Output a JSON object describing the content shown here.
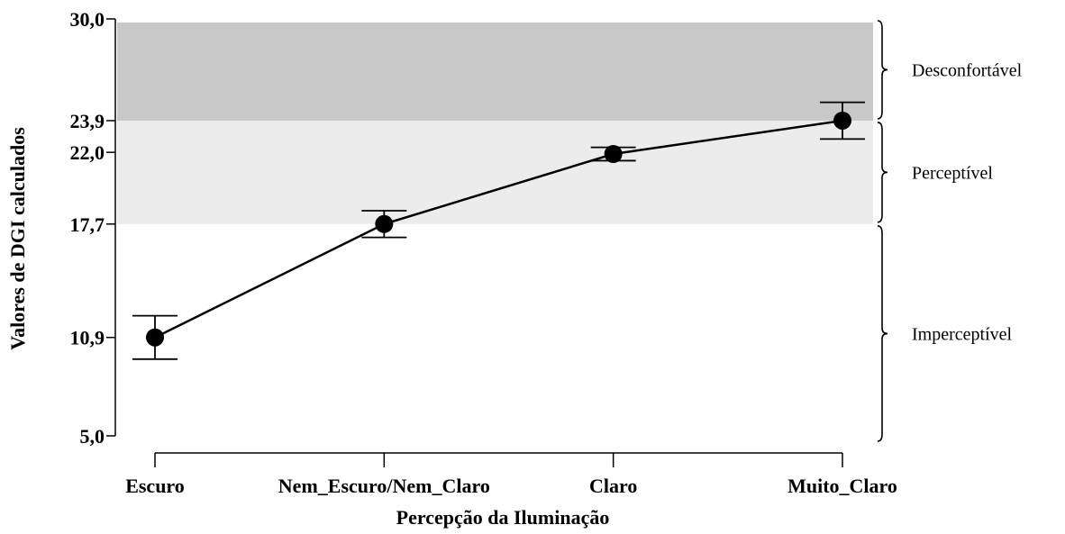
{
  "chart_data": {
    "type": "line",
    "xlabel": "Percepção da Iluminação",
    "ylabel": "Valores de DGI calculados",
    "categories": [
      "Escuro",
      "Nem_Escuro/Nem_Claro",
      "Claro",
      "Muito_Claro"
    ],
    "series": [
      {
        "values": [
          10.9,
          17.7,
          21.9,
          23.9
        ],
        "error_low": [
          9.6,
          16.9,
          21.5,
          22.8
        ],
        "error_high": [
          12.2,
          18.5,
          22.3,
          25.0
        ]
      }
    ],
    "ylim": [
      5.0,
      30.0
    ],
    "yticks": [
      {
        "value": 5.0,
        "label": "5,0"
      },
      {
        "value": 10.9,
        "label": "10,9"
      },
      {
        "value": 17.7,
        "label": "17,7"
      },
      {
        "value": 22.0,
        "label": "22,0"
      },
      {
        "value": 23.9,
        "label": "23,9"
      },
      {
        "value": 30.0,
        "label": "30,0"
      }
    ],
    "bands": [
      {
        "label": "Desconfortável",
        "from": 23.9,
        "to": 30.0,
        "color": "#c8c8c8"
      },
      {
        "label": "Perceptível",
        "from": 17.7,
        "to": 23.9,
        "color": "#ececec"
      },
      {
        "label": "Imperceptível",
        "from": 5.0,
        "to": 17.7,
        "color": "#ffffff"
      }
    ],
    "grid": false,
    "legend": "none",
    "colors": {
      "line": "#000000",
      "marker": "#000000"
    }
  }
}
